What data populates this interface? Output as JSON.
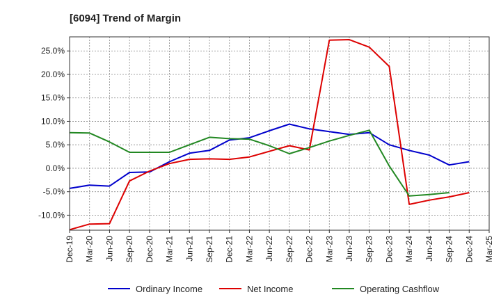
{
  "chart_data": {
    "type": "line",
    "title": "[6094]  Trend of Margin",
    "xlabel": "",
    "ylabel": "",
    "categories": [
      "Dec-19",
      "Mar-20",
      "Jun-20",
      "Sep-20",
      "Dec-20",
      "Mar-21",
      "Jun-21",
      "Sep-21",
      "Dec-21",
      "Mar-22",
      "Jun-22",
      "Sep-22",
      "Dec-22",
      "Mar-23",
      "Jun-23",
      "Sep-23",
      "Dec-23",
      "Mar-24",
      "Jun-24",
      "Sep-24",
      "Dec-24",
      "Mar-25"
    ],
    "yticks": [
      25,
      20,
      15,
      10,
      5,
      0,
      -5,
      -10
    ],
    "ytick_labels": [
      "25.0%",
      "20.0%",
      "15.0%",
      "10.0%",
      "5.0%",
      "0.0%",
      "-5.0%",
      "-10.0%"
    ],
    "ylim": [
      -13.2,
      28.0
    ],
    "grid": true,
    "legend_position": "bottom",
    "series": [
      {
        "name": "Ordinary Income",
        "color": "#0000cc",
        "points": [
          [
            0,
            -4.3
          ],
          [
            1,
            -3.6
          ],
          [
            2,
            -3.8
          ],
          [
            3,
            -0.9
          ],
          [
            4,
            -0.8
          ],
          [
            5,
            1.4
          ],
          [
            6,
            3.2
          ],
          [
            7,
            3.8
          ],
          [
            8,
            6.0
          ],
          [
            9,
            6.5
          ],
          [
            10,
            8.0
          ],
          [
            11,
            9.4
          ],
          [
            12,
            8.4
          ],
          [
            13,
            7.8
          ],
          [
            14,
            7.2
          ],
          [
            15,
            7.6
          ],
          [
            16,
            5.0
          ],
          [
            17,
            3.8
          ],
          [
            18,
            2.8
          ],
          [
            19,
            0.7
          ],
          [
            20,
            1.4
          ]
        ]
      },
      {
        "name": "Net Income",
        "color": "#dd0000",
        "points": [
          [
            0,
            -13.1
          ],
          [
            1,
            -11.9
          ],
          [
            2,
            -11.8
          ],
          [
            3,
            -2.7
          ],
          [
            4,
            -0.6
          ],
          [
            5,
            1.0
          ],
          [
            6,
            1.9
          ],
          [
            7,
            2.0
          ],
          [
            8,
            1.9
          ],
          [
            9,
            2.4
          ],
          [
            10,
            3.6
          ],
          [
            11,
            4.8
          ],
          [
            12,
            3.9
          ],
          [
            13,
            27.3
          ],
          [
            14,
            27.4
          ],
          [
            15,
            25.8
          ],
          [
            16,
            21.7
          ],
          [
            17,
            -7.7
          ],
          [
            18,
            -6.8
          ],
          [
            19,
            -6.1
          ],
          [
            20,
            -5.2
          ]
        ]
      },
      {
        "name": "Operating Cashflow",
        "color": "#228822",
        "points": [
          [
            0,
            7.6
          ],
          [
            1,
            7.5
          ],
          [
            2,
            5.6
          ],
          [
            3,
            3.4
          ],
          [
            4,
            3.4
          ],
          [
            5,
            3.4
          ],
          [
            6,
            5.0
          ],
          [
            7,
            6.6
          ],
          [
            8,
            6.3
          ],
          [
            9,
            6.2
          ],
          [
            10,
            4.8
          ],
          [
            11,
            3.1
          ],
          [
            12,
            4.4
          ],
          [
            13,
            5.8
          ],
          [
            14,
            7.0
          ],
          [
            15,
            8.1
          ],
          [
            16,
            0.5
          ],
          [
            17,
            -5.9
          ],
          [
            18,
            -5.6
          ],
          [
            19,
            -5.2
          ]
        ]
      }
    ]
  }
}
